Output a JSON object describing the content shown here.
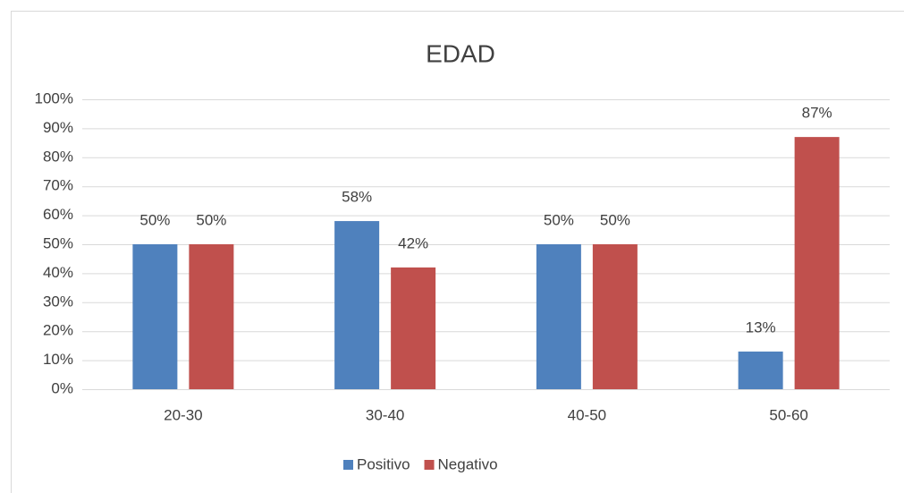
{
  "chart_data": {
    "type": "bar",
    "title": "EDAD",
    "categories": [
      "20-30",
      "30-40",
      "40-50",
      "50-60"
    ],
    "series": [
      {
        "name": "Positivo",
        "color": "#4f81bd",
        "values": [
          50,
          58,
          50,
          13
        ],
        "value_labels": [
          "50%",
          "58%",
          "50%",
          "13%"
        ]
      },
      {
        "name": "Negativo",
        "color": "#c0504d",
        "values": [
          50,
          42,
          50,
          87
        ],
        "value_labels": [
          "50%",
          "42%",
          "50%",
          "87%"
        ]
      }
    ],
    "ylim": [
      0,
      100
    ],
    "yticks": [
      {
        "value": 0,
        "label": "0%"
      },
      {
        "value": 10,
        "label": "10%"
      },
      {
        "value": 20,
        "label": "20%"
      },
      {
        "value": 30,
        "label": "30%"
      },
      {
        "value": 40,
        "label": "40%"
      },
      {
        "value": 50,
        "label": "50%"
      },
      {
        "value": 60,
        "label": "60%"
      },
      {
        "value": 70,
        "label": "70%"
      },
      {
        "value": 80,
        "label": "80%"
      },
      {
        "value": 90,
        "label": "90%"
      },
      {
        "value": 100,
        "label": "100%"
      }
    ],
    "grid": true,
    "legend": "bottom"
  }
}
